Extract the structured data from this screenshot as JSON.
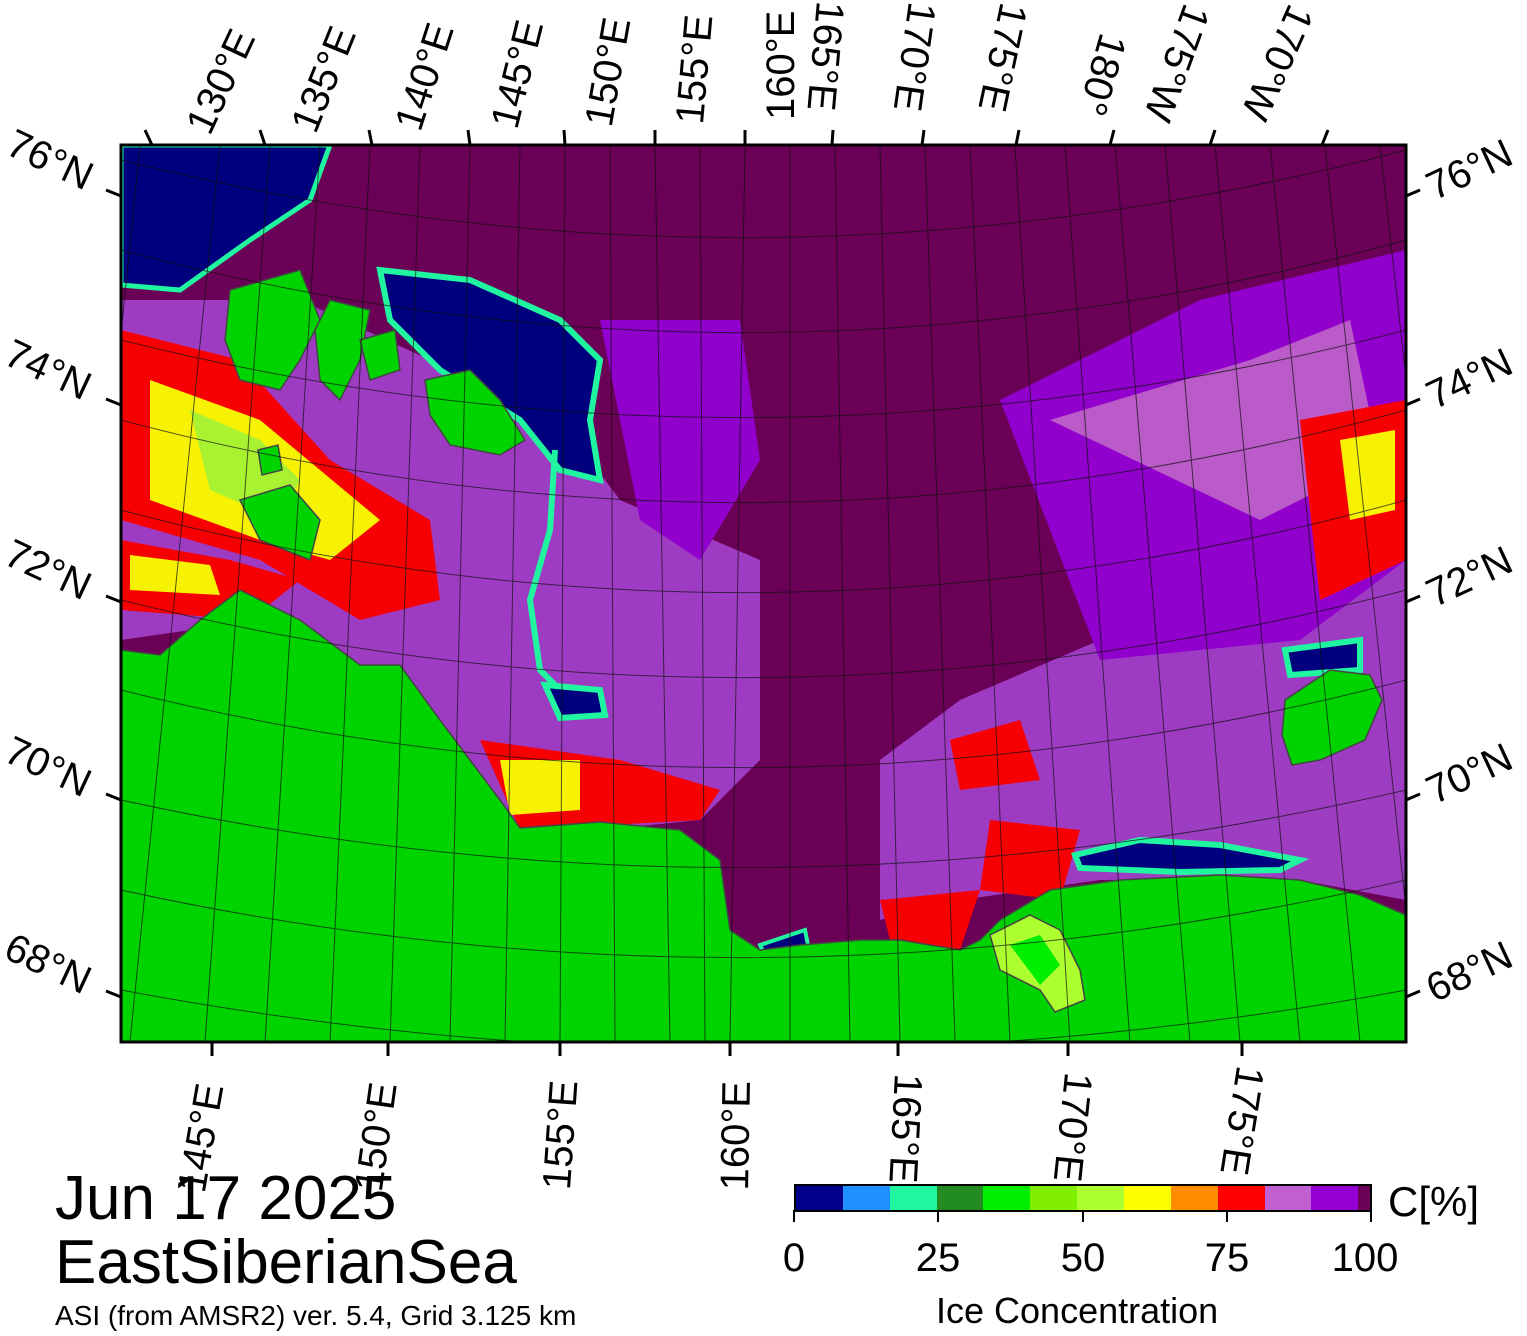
{
  "map": {
    "date": "Jun 17 2025",
    "region": "EastSiberianSea",
    "product": "ASI (from AMSR2) ver. 5.4,  Grid 3.125 km",
    "top_lon_labels": [
      "130°E",
      "135°E",
      "140°E",
      "145°E",
      "150°E",
      "155°E",
      "160°E",
      "165°E",
      "170°E",
      "175°E",
      "180°",
      "175°W",
      "170°W"
    ],
    "bottom_lon_labels": [
      "145°E",
      "150°E",
      "155°E",
      "160°E",
      "165°E",
      "170°E",
      "175°E"
    ],
    "left_lat_labels": [
      "76°N",
      "74°N",
      "72°N",
      "70°N",
      "68°N"
    ],
    "right_lat_labels": [
      "76°N",
      "74°N",
      "72°N",
      "70°N",
      "68°N"
    ],
    "colors": {
      "open_water": "#6b0057",
      "land": "#00d400",
      "land_shade": "#7a8a7a",
      "ice_full": "#00007f"
    }
  },
  "colorbar": {
    "title": "Ice Concentration",
    "unit": "C[%]",
    "ticks": [
      "0",
      "25",
      "50",
      "75",
      "100"
    ],
    "colors": [
      "#00008b",
      "#1e90ff",
      "#20f5a0",
      "#228b22",
      "#00ee00",
      "#7fee00",
      "#adff2f",
      "#ffff00",
      "#ff8c00",
      "#ff0000",
      "#c060d0",
      "#9400d3",
      "#6b0057"
    ]
  }
}
